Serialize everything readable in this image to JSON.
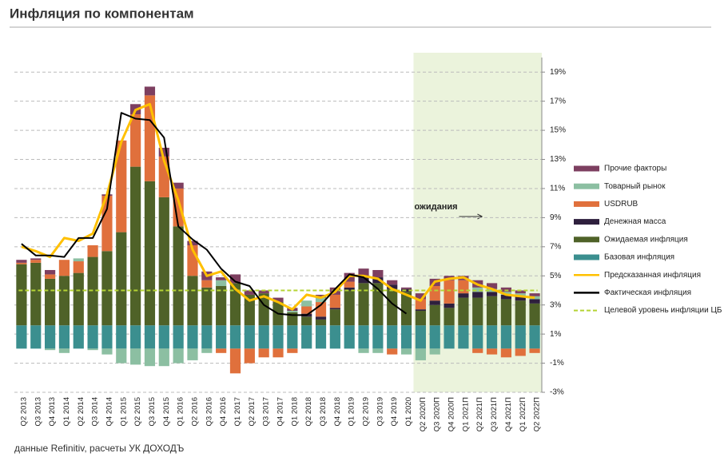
{
  "title": "Инфляция по компонентам",
  "source": "данные Refinitiv, расчеты УК ДОХОДЪ",
  "chart_data": {
    "type": "combo",
    "stacked": true,
    "categories": [
      "Q2 2013",
      "Q3 2013",
      "Q4 2013",
      "Q1 2014",
      "Q2 2014",
      "Q3 2014",
      "Q4 2014",
      "Q1 2015",
      "Q2 2015",
      "Q3 2015",
      "Q4 2015",
      "Q1 2016",
      "Q2 2016",
      "Q3 2016",
      "Q4 2016",
      "Q1 2017",
      "Q2 2017",
      "Q3 2017",
      "Q4 2017",
      "Q1 2018",
      "Q2 2018",
      "Q3 2018",
      "Q4 2018",
      "Q1 2019",
      "Q2 2019",
      "Q3 2019",
      "Q4 2019",
      "Q1 2020",
      "Q2 2020П",
      "Q3 2020П",
      "Q4 2020П",
      "Q1 2021П",
      "Q2 2021П",
      "Q3 2021П",
      "Q4 2021П",
      "Q1 2022П",
      "Q2 2022П"
    ],
    "series": [
      {
        "name": "Базовая инфляция",
        "kind": "bar",
        "color": "#3b8f8f",
        "values": [
          1.6,
          1.6,
          1.6,
          1.6,
          1.6,
          1.6,
          1.6,
          1.6,
          1.6,
          1.6,
          1.6,
          1.6,
          1.6,
          1.6,
          1.6,
          1.6,
          1.6,
          1.6,
          1.6,
          1.6,
          1.6,
          1.6,
          1.6,
          1.6,
          1.6,
          1.6,
          1.6,
          1.6,
          1.6,
          1.6,
          1.6,
          1.6,
          1.6,
          1.6,
          1.6,
          1.6,
          1.6
        ]
      },
      {
        "name": "Ожидаемая инфляция",
        "kind": "bar",
        "color": "#4f6228",
        "values": [
          4.2,
          4.3,
          3.2,
          3.4,
          3.6,
          4.7,
          5.1,
          6.4,
          10.9,
          9.9,
          8.8,
          6.8,
          3.4,
          2.6,
          2.7,
          2.9,
          2.1,
          2.2,
          1.6,
          0.9,
          0.6,
          0.4,
          1.1,
          2.4,
          2.9,
          2.9,
          2.5,
          2.3,
          1.0,
          1.4,
          1.2,
          1.9,
          1.9,
          2.0,
          1.8,
          1.7,
          1.5
        ]
      },
      {
        "name": "Денежная масса",
        "kind": "bar",
        "color": "#2e1f3d",
        "values": [
          0,
          0,
          0,
          0,
          0,
          0,
          0,
          0,
          0,
          0,
          0,
          0,
          0,
          0,
          0,
          0,
          0,
          0,
          0,
          0,
          0.2,
          0.2,
          0.1,
          0.2,
          0.5,
          0.4,
          0.3,
          0.2,
          0.1,
          0.3,
          0.3,
          0.3,
          0.4,
          0.3,
          0.3,
          0.3,
          0.3
        ]
      },
      {
        "name": "USDRUB",
        "kind": "bar",
        "color": "#e0703c",
        "values": [
          0.1,
          0.2,
          0.3,
          1.1,
          0.8,
          0.8,
          3.8,
          6.3,
          3.6,
          5.9,
          2.8,
          2.6,
          2.1,
          0.5,
          -0.3,
          -1.7,
          -1.0,
          -0.6,
          -0.6,
          -0.3,
          0.5,
          1.0,
          0.9,
          0.4,
          0,
          0,
          -0.4,
          0,
          0.7,
          1.0,
          1.6,
          0.9,
          -0.3,
          -0.4,
          -0.6,
          -0.5,
          -0.3
        ]
      },
      {
        "name": "Товарный рынок",
        "kind": "bar",
        "color": "#8cbfa2",
        "values": [
          0,
          0,
          -0.1,
          -0.3,
          0.2,
          -0.1,
          -0.4,
          -1.0,
          -1.1,
          -1.2,
          -1.2,
          -1.0,
          -0.8,
          -0.3,
          0.4,
          0,
          0,
          0,
          0,
          0.1,
          0.4,
          0.3,
          0,
          0,
          -0.3,
          -0.3,
          0,
          -0.4,
          -0.8,
          -0.4,
          0,
          0,
          0.3,
          0.2,
          0.2,
          0.2,
          0.2
        ]
      },
      {
        "name": "Прочие факторы",
        "kind": "bar",
        "color": "#7d3f60",
        "values": [
          0.2,
          0.1,
          0.3,
          0,
          0,
          0,
          0.1,
          0,
          0.7,
          0.6,
          0.6,
          0.4,
          0.3,
          0.6,
          0.2,
          0.6,
          0.3,
          0.2,
          0.3,
          0.2,
          0,
          0.2,
          0.5,
          0.6,
          0.5,
          0.5,
          0.3,
          0.1,
          0.4,
          0.5,
          0.3,
          0.3,
          0.5,
          0.4,
          0.3,
          0.2,
          0.2
        ]
      },
      {
        "name": "Предсказанная инфляция",
        "kind": "line",
        "color": "#ffc000",
        "values": [
          7.0,
          6.7,
          6.3,
          7.6,
          7.4,
          7.9,
          10.6,
          14.2,
          16.4,
          16.8,
          12.9,
          10.2,
          6.8,
          5.0,
          5.3,
          4.1,
          3.3,
          3.6,
          3.2,
          2.7,
          3.7,
          3.5,
          3.9,
          5.0,
          5.0,
          4.8,
          4.1,
          3.7,
          3.3,
          4.6,
          4.8,
          4.9,
          4.4,
          4.1,
          3.7,
          3.6,
          3.5
        ]
      },
      {
        "name": "Фактическая инфляция",
        "kind": "line",
        "color": "#000000",
        "values": [
          7.2,
          6.4,
          6.4,
          6.3,
          7.6,
          7.6,
          9.6,
          16.2,
          15.8,
          15.7,
          14.5,
          8.4,
          7.5,
          6.8,
          5.5,
          4.6,
          4.3,
          3.0,
          2.4,
          2.3,
          2.3,
          3.0,
          4.1,
          5.1,
          4.9,
          4.1,
          3.1,
          2.4,
          null,
          null,
          null,
          null,
          null,
          null,
          null,
          null,
          null
        ]
      }
    ],
    "target": {
      "name": "Целевой уровень инфляции ЦБ",
      "value": 4,
      "color": "#b5d334"
    },
    "annotation": "ожидания",
    "ylim": [
      -3,
      20
    ],
    "yticks": [
      {
        "value": -3,
        "label": "-3%"
      },
      {
        "value": -1,
        "label": "-1%"
      },
      {
        "value": 1,
        "label": "1%"
      },
      {
        "value": 3,
        "label": "3%"
      },
      {
        "value": 5,
        "label": "5%"
      },
      {
        "value": 7,
        "label": "7%"
      },
      {
        "value": 9,
        "label": "9%"
      },
      {
        "value": 11,
        "label": "11%"
      },
      {
        "value": 13,
        "label": "13%"
      },
      {
        "value": 15,
        "label": "15%"
      },
      {
        "value": 17,
        "label": "17%"
      },
      {
        "value": 19,
        "label": "19%"
      }
    ],
    "grid": true
  }
}
